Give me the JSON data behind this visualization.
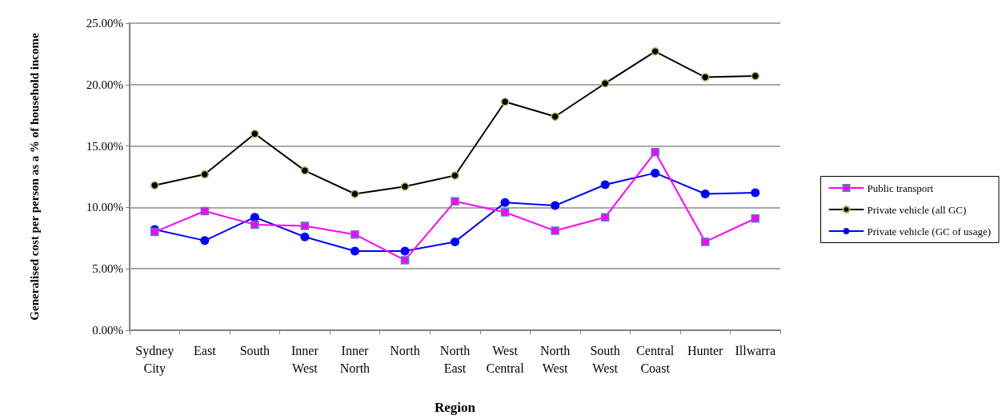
{
  "chart_data": {
    "type": "line",
    "xlabel": "Region",
    "ylabel": "Generalised cost per person as a % of household income",
    "categories": [
      "Sydney\nCity",
      "East",
      "South",
      "Inner\nWest",
      "Inner\nNorth",
      "North",
      "North\nEast",
      "West\nCentral",
      "North\nWest",
      "South\nWest",
      "Central\nCoast",
      "Hunter",
      "Illwarra"
    ],
    "series": [
      {
        "name": "Public transport",
        "color": "#ff00ff",
        "marker": "square",
        "values": [
          8.0,
          9.7,
          8.6,
          8.5,
          7.8,
          5.7,
          10.5,
          9.6,
          8.1,
          9.2,
          14.5,
          7.2,
          9.1
        ]
      },
      {
        "name": "Private vehicle (all GC)",
        "color": "#000000",
        "marker": "circle",
        "values": [
          11.8,
          12.7,
          16.0,
          13.0,
          11.1,
          11.7,
          12.6,
          18.6,
          17.4,
          20.1,
          22.7,
          20.6,
          20.7
        ]
      },
      {
        "name": "Private vehicle (GC of usage)",
        "color": "#0000ff",
        "marker": "circle",
        "values": [
          8.2,
          7.3,
          9.2,
          7.6,
          6.45,
          6.45,
          7.2,
          10.4,
          10.15,
          11.85,
          12.8,
          11.1,
          11.2
        ]
      }
    ],
    "ylim": [
      0,
      25
    ],
    "yticks": [
      {
        "value": 0,
        "label": "0.00%"
      },
      {
        "value": 5,
        "label": "5.00%"
      },
      {
        "value": 10,
        "label": "10.00%"
      },
      {
        "value": 15,
        "label": "15.00%"
      },
      {
        "value": 20,
        "label": "20.00%"
      },
      {
        "value": 25,
        "label": "25.00%"
      }
    ],
    "grid": "y",
    "legend": "right",
    "line_style": "solid"
  }
}
